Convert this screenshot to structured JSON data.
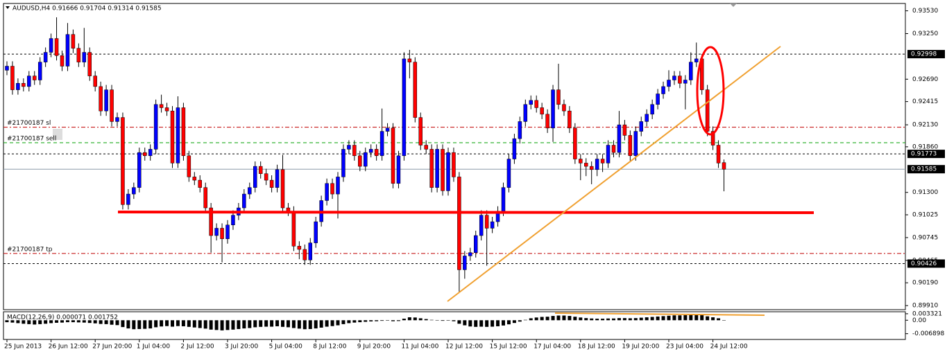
{
  "chart_data": {
    "type": "candlestick",
    "title": "AUDUSD,H4  0.91666 0.91704 0.91314 0.91585",
    "up_color": "#0000ff",
    "down_color": "#ff0000",
    "ylim": [
      0.8986,
      0.9362
    ],
    "yticks": [
      {
        "value": 0.9353,
        "label": "0.93530"
      },
      {
        "value": 0.9325,
        "label": "0.93250"
      },
      {
        "value": 0.9269,
        "label": "0.92690"
      },
      {
        "value": 0.92415,
        "label": "0.92415"
      },
      {
        "value": 0.9213,
        "label": "0.92130"
      },
      {
        "value": 0.9186,
        "label": "0.91860"
      },
      {
        "value": 0.913,
        "label": "0.91300"
      },
      {
        "value": 0.91025,
        "label": "0.91025"
      },
      {
        "value": 0.90745,
        "label": "0.90745"
      },
      {
        "value": 0.90465,
        "label": "0.90465"
      },
      {
        "value": 0.9019,
        "label": "0.90190"
      },
      {
        "value": 0.8991,
        "label": "0.89910"
      }
    ],
    "levels": [
      {
        "value": 0.92998,
        "label": "0.92998",
        "color": "#000",
        "dash": "3,3"
      },
      {
        "value": 0.91773,
        "label": "0.91773",
        "color": "#000",
        "dash": "3,3"
      },
      {
        "value": 0.91585,
        "label": "0.91585",
        "color": "#8a9aa8",
        "dash": "none"
      },
      {
        "value": 0.90426,
        "label": "0.90426",
        "color": "#000",
        "dash": "3,3"
      }
    ],
    "orders": [
      {
        "label": "#21700187 sl",
        "value": 0.921,
        "color": "#c00000",
        "dash": "6,3,2,3"
      },
      {
        "label": "#21700187 sell",
        "value": 0.9191,
        "color": "#00a000",
        "dash": "5,4"
      },
      {
        "label": "#21700187 tp",
        "value": 0.9055,
        "color": "#c00000",
        "dash": "6,3,2,3"
      }
    ],
    "x_labels": [
      "25 Jun 2013",
      "26 Jun 12:00",
      "27 Jun 20:00",
      "1 Jul 04:00",
      "2 Jul 12:00",
      "3 Jul 20:00",
      "5 Jul 04:00",
      "8 Jul 12:00",
      "9 Jul 20:00",
      "11 Jul 04:00",
      "12 Jul 12:00",
      "15 Jul 12:00",
      "17 Jul 04:00",
      "18 Jul 12:00",
      "19 Jul 20:00",
      "23 Jul 04:00",
      "24 Jul 12:00"
    ],
    "ohlc": [
      [
        0.928,
        0.9291,
        0.9274,
        0.9285
      ],
      [
        0.9285,
        0.9291,
        0.925,
        0.9256
      ],
      [
        0.9256,
        0.927,
        0.925,
        0.9264
      ],
      [
        0.9264,
        0.927,
        0.9254,
        0.926
      ],
      [
        0.926,
        0.9279,
        0.9254,
        0.9273
      ],
      [
        0.9273,
        0.9279,
        0.9262,
        0.9268
      ],
      [
        0.9268,
        0.9296,
        0.9262,
        0.929
      ],
      [
        0.929,
        0.9308,
        0.9284,
        0.9302
      ],
      [
        0.9302,
        0.9325,
        0.9296,
        0.9319
      ],
      [
        0.9319,
        0.9345,
        0.9292,
        0.9298
      ],
      [
        0.9298,
        0.9304,
        0.9279,
        0.9285
      ],
      [
        0.9285,
        0.9338,
        0.9279,
        0.9324
      ],
      [
        0.9324,
        0.933,
        0.9301,
        0.9307
      ],
      [
        0.9307,
        0.9313,
        0.9284,
        0.929
      ],
      [
        0.929,
        0.9332,
        0.9284,
        0.9302
      ],
      [
        0.9302,
        0.9308,
        0.9267,
        0.9273
      ],
      [
        0.9273,
        0.9279,
        0.9254,
        0.926
      ],
      [
        0.926,
        0.9266,
        0.9224,
        0.923
      ],
      [
        0.923,
        0.9262,
        0.9224,
        0.9256
      ],
      [
        0.9256,
        0.9262,
        0.9211,
        0.9217
      ],
      [
        0.9217,
        0.9228,
        0.9211,
        0.9222
      ],
      [
        0.9222,
        0.9228,
        0.9109,
        0.9115
      ],
      [
        0.9115,
        0.9134,
        0.9109,
        0.9128
      ],
      [
        0.9128,
        0.9142,
        0.9122,
        0.9136
      ],
      [
        0.9136,
        0.9185,
        0.913,
        0.9179
      ],
      [
        0.9179,
        0.9185,
        0.9169,
        0.9175
      ],
      [
        0.9175,
        0.9189,
        0.9169,
        0.9183
      ],
      [
        0.9183,
        0.9244,
        0.9177,
        0.9238
      ],
      [
        0.9238,
        0.925,
        0.9228,
        0.9234
      ],
      [
        0.9234,
        0.924,
        0.9224,
        0.923
      ],
      [
        0.923,
        0.9236,
        0.916,
        0.9166
      ],
      [
        0.9166,
        0.9248,
        0.916,
        0.9234
      ],
      [
        0.9234,
        0.924,
        0.9169,
        0.9175
      ],
      [
        0.9175,
        0.9181,
        0.9143,
        0.9149
      ],
      [
        0.9149,
        0.9155,
        0.9139,
        0.9145
      ],
      [
        0.9145,
        0.9151,
        0.913,
        0.9136
      ],
      [
        0.9136,
        0.9142,
        0.9105,
        0.9111
      ],
      [
        0.9111,
        0.9117,
        0.9056,
        0.9077
      ],
      [
        0.9077,
        0.9092,
        0.9071,
        0.9086
      ],
      [
        0.9086,
        0.9092,
        0.9044,
        0.9073
      ],
      [
        0.9073,
        0.9096,
        0.9067,
        0.909
      ],
      [
        0.909,
        0.9108,
        0.9084,
        0.9102
      ],
      [
        0.9102,
        0.9117,
        0.9096,
        0.9111
      ],
      [
        0.9111,
        0.9134,
        0.9105,
        0.9128
      ],
      [
        0.9128,
        0.9142,
        0.9122,
        0.9136
      ],
      [
        0.9136,
        0.9168,
        0.913,
        0.9162
      ],
      [
        0.9162,
        0.9168,
        0.9147,
        0.9153
      ],
      [
        0.9153,
        0.9159,
        0.9139,
        0.9145
      ],
      [
        0.9145,
        0.9151,
        0.913,
        0.9136
      ],
      [
        0.9136,
        0.9164,
        0.913,
        0.9158
      ],
      [
        0.9158,
        0.9176,
        0.9105,
        0.9111
      ],
      [
        0.9111,
        0.9117,
        0.9101,
        0.9107
      ],
      [
        0.9107,
        0.9113,
        0.9058,
        0.9064
      ],
      [
        0.9064,
        0.907,
        0.9048,
        0.906
      ],
      [
        0.906,
        0.9066,
        0.9041,
        0.9047
      ],
      [
        0.9047,
        0.9074,
        0.9041,
        0.9068
      ],
      [
        0.9068,
        0.91,
        0.9062,
        0.9094
      ],
      [
        0.9094,
        0.9126,
        0.9088,
        0.912
      ],
      [
        0.912,
        0.9147,
        0.9114,
        0.9141
      ],
      [
        0.9141,
        0.9147,
        0.9122,
        0.9128
      ],
      [
        0.9128,
        0.9155,
        0.9098,
        0.9149
      ],
      [
        0.9149,
        0.9189,
        0.9143,
        0.9183
      ],
      [
        0.9183,
        0.9194,
        0.9177,
        0.9188
      ],
      [
        0.9188,
        0.9194,
        0.9169,
        0.9175
      ],
      [
        0.9175,
        0.9181,
        0.9156,
        0.9162
      ],
      [
        0.9162,
        0.9185,
        0.9156,
        0.9179
      ],
      [
        0.9179,
        0.9189,
        0.9173,
        0.9183
      ],
      [
        0.9183,
        0.9189,
        0.9169,
        0.9175
      ],
      [
        0.9175,
        0.9233,
        0.9169,
        0.9205
      ],
      [
        0.9205,
        0.9215,
        0.9199,
        0.9209
      ],
      [
        0.9209,
        0.9215,
        0.9135,
        0.9141
      ],
      [
        0.9141,
        0.9181,
        0.9135,
        0.9175
      ],
      [
        0.9175,
        0.9302,
        0.9169,
        0.9294
      ],
      [
        0.9294,
        0.9305,
        0.927,
        0.929
      ],
      [
        0.929,
        0.9296,
        0.9216,
        0.9222
      ],
      [
        0.9222,
        0.9228,
        0.9182,
        0.9188
      ],
      [
        0.9188,
        0.9194,
        0.9177,
        0.9183
      ],
      [
        0.9183,
        0.9189,
        0.913,
        0.9136
      ],
      [
        0.9136,
        0.9189,
        0.913,
        0.9183
      ],
      [
        0.9183,
        0.9189,
        0.9126,
        0.9132
      ],
      [
        0.9132,
        0.9185,
        0.9126,
        0.9179
      ],
      [
        0.9179,
        0.9185,
        0.9143,
        0.9149
      ],
      [
        0.9149,
        0.9155,
        0.9008,
        0.9035
      ],
      [
        0.9035,
        0.9058,
        0.9024,
        0.9052
      ],
      [
        0.9052,
        0.9062,
        0.9046,
        0.9056
      ],
      [
        0.9056,
        0.9083,
        0.905,
        0.9077
      ],
      [
        0.9077,
        0.9108,
        0.9071,
        0.9102
      ],
      [
        0.9102,
        0.9108,
        0.904,
        0.9086
      ],
      [
        0.9086,
        0.91,
        0.908,
        0.9094
      ],
      [
        0.9094,
        0.9113,
        0.9088,
        0.9107
      ],
      [
        0.9107,
        0.9142,
        0.9101,
        0.9136
      ],
      [
        0.9136,
        0.9177,
        0.913,
        0.9171
      ],
      [
        0.9171,
        0.9202,
        0.9165,
        0.9196
      ],
      [
        0.9196,
        0.9223,
        0.919,
        0.9217
      ],
      [
        0.9217,
        0.9244,
        0.9211,
        0.9238
      ],
      [
        0.9238,
        0.9249,
        0.9232,
        0.9243
      ],
      [
        0.9243,
        0.9249,
        0.9228,
        0.9234
      ],
      [
        0.9234,
        0.924,
        0.922,
        0.9226
      ],
      [
        0.9226,
        0.9232,
        0.9203,
        0.9209
      ],
      [
        0.9209,
        0.9262,
        0.9192,
        0.9256
      ],
      [
        0.9256,
        0.9288,
        0.9232,
        0.9238
      ],
      [
        0.9238,
        0.9244,
        0.9224,
        0.923
      ],
      [
        0.923,
        0.9236,
        0.9203,
        0.9209
      ],
      [
        0.9209,
        0.9215,
        0.9165,
        0.9171
      ],
      [
        0.9171,
        0.9177,
        0.9145,
        0.9166
      ],
      [
        0.9166,
        0.9172,
        0.915,
        0.9162
      ],
      [
        0.9162,
        0.9168,
        0.914,
        0.9158
      ],
      [
        0.9158,
        0.9177,
        0.915,
        0.9171
      ],
      [
        0.9171,
        0.9177,
        0.9155,
        0.9166
      ],
      [
        0.9166,
        0.9194,
        0.916,
        0.9188
      ],
      [
        0.9188,
        0.9194,
        0.9173,
        0.9179
      ],
      [
        0.9179,
        0.923,
        0.9173,
        0.9213
      ],
      [
        0.9213,
        0.9219,
        0.9194,
        0.92
      ],
      [
        0.92,
        0.9206,
        0.9169,
        0.9175
      ],
      [
        0.9175,
        0.9211,
        0.9169,
        0.9205
      ],
      [
        0.9205,
        0.9223,
        0.9199,
        0.9217
      ],
      [
        0.9217,
        0.9232,
        0.9211,
        0.9226
      ],
      [
        0.9226,
        0.9244,
        0.922,
        0.9238
      ],
      [
        0.9238,
        0.9257,
        0.9232,
        0.9251
      ],
      [
        0.9251,
        0.9266,
        0.9245,
        0.926
      ],
      [
        0.926,
        0.928,
        0.9254,
        0.9268
      ],
      [
        0.9268,
        0.9279,
        0.9262,
        0.9273
      ],
      [
        0.9273,
        0.9279,
        0.9258,
        0.9264
      ],
      [
        0.9264,
        0.9274,
        0.9232,
        0.9268
      ],
      [
        0.9268,
        0.9302,
        0.9262,
        0.929
      ],
      [
        0.929,
        0.9314,
        0.9284,
        0.9294
      ],
      [
        0.9294,
        0.93,
        0.925,
        0.9256
      ],
      [
        0.9256,
        0.9262,
        0.9199,
        0.9205
      ],
      [
        0.9205,
        0.9211,
        0.9182,
        0.9188
      ],
      [
        0.9188,
        0.9194,
        0.916,
        0.9166
      ],
      [
        0.91666,
        0.91704,
        0.91314,
        0.91585
      ]
    ],
    "macd_title": "MACD(12,26,9) 0.000071 0.001752",
    "macd_color": "#000000",
    "macd_lim": [
      -0.0095,
      0.004
    ],
    "macd_ticks": [
      {
        "value": 0.003321,
        "label": "0.003321"
      },
      {
        "value": 0,
        "label": "0.00"
      },
      {
        "value": -0.006898,
        "label": "-0.006898"
      }
    ],
    "macd": [
      -0.001,
      -0.0012,
      -0.0015,
      -0.0018,
      -0.002,
      -0.0022,
      -0.002,
      -0.0018,
      -0.0015,
      -0.0013,
      -0.0012,
      -0.001,
      -0.001,
      -0.0011,
      -0.0012,
      -0.0014,
      -0.0016,
      -0.0019,
      -0.002,
      -0.0023,
      -0.0025,
      -0.0035,
      -0.0042,
      -0.0046,
      -0.0045,
      -0.0044,
      -0.0042,
      -0.0036,
      -0.0032,
      -0.003,
      -0.0033,
      -0.003,
      -0.0031,
      -0.0034,
      -0.0037,
      -0.004,
      -0.0043,
      -0.0048,
      -0.005,
      -0.0052,
      -0.005,
      -0.0048,
      -0.0045,
      -0.0042,
      -0.004,
      -0.0036,
      -0.0034,
      -0.0033,
      -0.0033,
      -0.0031,
      -0.0034,
      -0.0036,
      -0.004,
      -0.0043,
      -0.0046,
      -0.0045,
      -0.0042,
      -0.0038,
      -0.0033,
      -0.003,
      -0.0026,
      -0.002,
      -0.0015,
      -0.0012,
      -0.001,
      -0.0008,
      -0.0006,
      -0.0005,
      -0.0003,
      -0.0002,
      -0.0005,
      -0.0004,
      0.0008,
      0.0015,
      0.0014,
      0.001,
      0.0006,
      0.0002,
      0.0001,
      -0.0003,
      -0.0002,
      -0.0005,
      -0.0018,
      -0.0026,
      -0.0032,
      -0.0034,
      -0.0033,
      -0.0034,
      -0.0033,
      -0.0031,
      -0.0027,
      -0.0021,
      -0.0014,
      -0.0007,
      0.0002,
      0.001,
      0.0014,
      0.0017,
      0.0018,
      0.0022,
      0.0024,
      0.0024,
      0.0022,
      0.0018,
      0.0014,
      0.0011,
      0.0009,
      0.0008,
      0.0008,
      0.0009,
      0.0009,
      0.0011,
      0.0011,
      0.001,
      0.0011,
      0.0013,
      0.0015,
      0.0017,
      0.0019,
      0.0021,
      0.0023,
      0.0025,
      0.0025,
      0.0026,
      0.0028,
      0.0029,
      0.0026,
      0.002,
      0.0015,
      0.001,
      7.1e-05
    ]
  }
}
